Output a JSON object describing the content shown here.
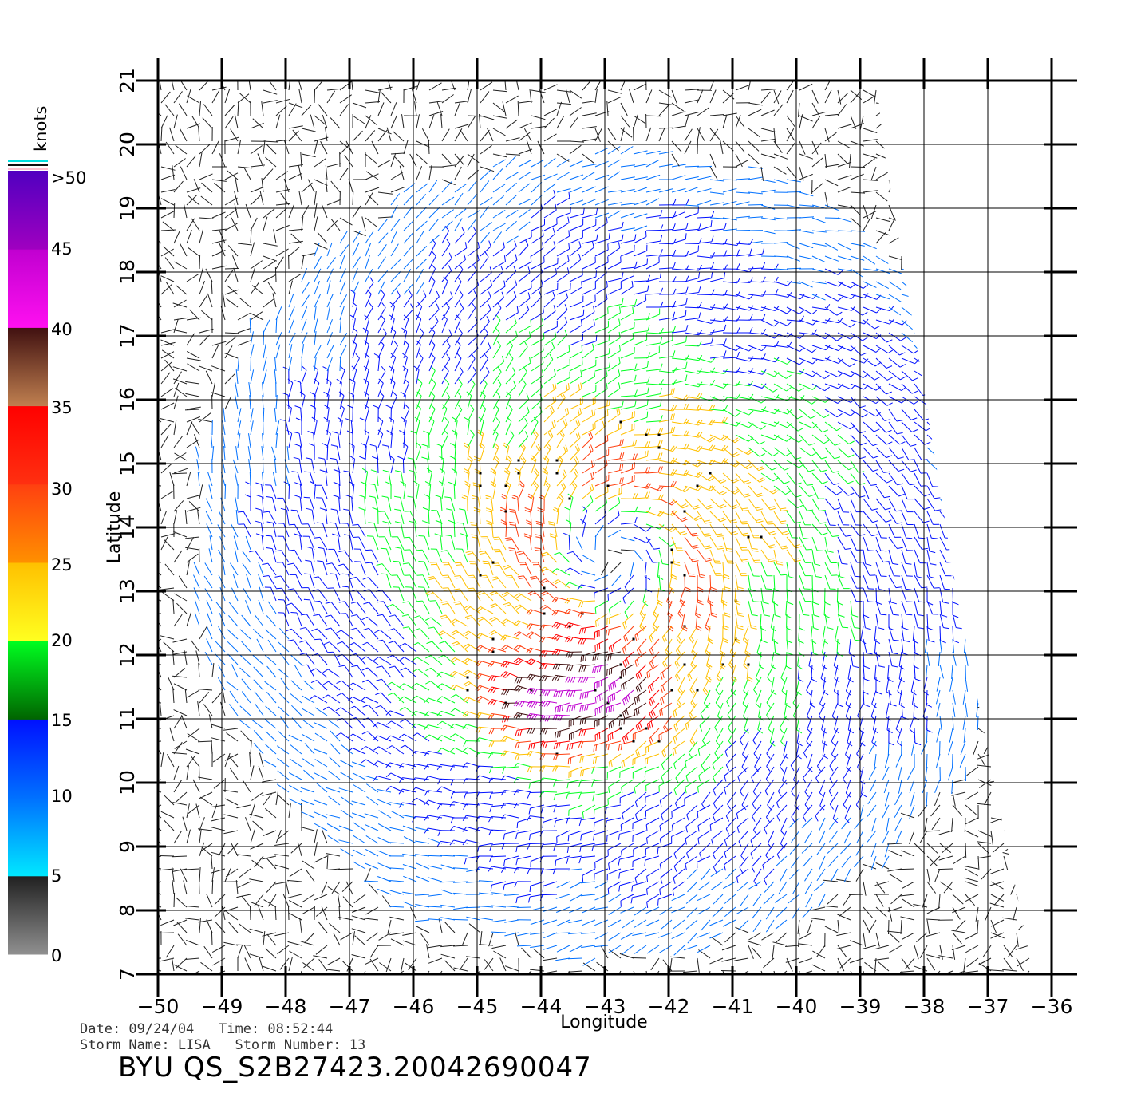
{
  "colorbar": {
    "unit": "knots",
    "ticks": [
      "0",
      "5",
      "10",
      "15",
      "20",
      "25",
      "30",
      "35",
      "40",
      "45",
      ">50"
    ],
    "segments": [
      {
        "from": 0,
        "to": 5,
        "colors": [
          "#909090",
          "#202020"
        ]
      },
      {
        "from": 5,
        "to": 10,
        "colors": [
          "#00e8ff",
          "#0070ff"
        ]
      },
      {
        "from": 10,
        "to": 15,
        "colors": [
          "#0070ff",
          "#0010ff"
        ]
      },
      {
        "from": 15,
        "to": 20,
        "colors": [
          "#006400",
          "#00ff20"
        ]
      },
      {
        "from": 20,
        "to": 25,
        "colors": [
          "#ffff20",
          "#ffc000"
        ]
      },
      {
        "from": 25,
        "to": 30,
        "colors": [
          "#ff9000",
          "#ff4010"
        ]
      },
      {
        "from": 30,
        "to": 35,
        "colors": [
          "#ff3010",
          "#ff0000"
        ]
      },
      {
        "from": 35,
        "to": 40,
        "colors": [
          "#c08050",
          "#401010"
        ]
      },
      {
        "from": 40,
        "to": 45,
        "colors": [
          "#ff10f0",
          "#c000d0"
        ]
      },
      {
        "from": 45,
        "to": 50,
        "colors": [
          "#a000c0",
          "#5000c0"
        ]
      }
    ]
  },
  "chart_data": {
    "type": "wind-barb-map",
    "xlabel": "Longitude",
    "ylabel": "Latitude",
    "xlim": [
      -50,
      -36
    ],
    "ylim": [
      7,
      21
    ],
    "x_ticks": [
      "-50",
      "-49",
      "-48",
      "-47",
      "-46",
      "-45",
      "-44",
      "-43",
      "-42",
      "-41",
      "-40",
      "-39",
      "-38",
      "-37",
      "-36"
    ],
    "y_ticks": [
      "7",
      "8",
      "9",
      "10",
      "11",
      "12",
      "13",
      "14",
      "15",
      "16",
      "17",
      "18",
      "19",
      "20",
      "21"
    ],
    "grid": true,
    "storm_center": {
      "lon": -42.9,
      "lat": 13.6
    },
    "max_wind_location": {
      "lon": -43.4,
      "lat": 11.3
    },
    "max_wind_knots": 50
  },
  "footer": {
    "date_line": "Date: 09/24/04   Time: 08:52:44",
    "storm_line": "Storm Name: LISA   Storm Number: 13",
    "product_id": "BYU QS_S2B27423.20042690047"
  }
}
